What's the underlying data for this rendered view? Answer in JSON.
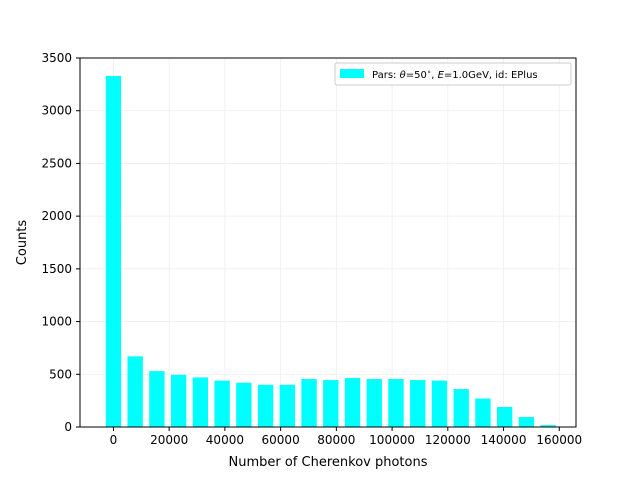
{
  "chart_data": {
    "type": "bar",
    "title": "",
    "xlabel": "Number of Cherenkov photons",
    "ylabel": "Counts",
    "xlim": [
      -12000,
      166000
    ],
    "ylim": [
      0,
      3500
    ],
    "grid": true,
    "legend_position": "top-right",
    "bar_width": 5500,
    "x": [
      0,
      7800,
      15600,
      23400,
      31200,
      39000,
      46800,
      54600,
      62400,
      70200,
      78000,
      85800,
      93600,
      101400,
      109200,
      117000,
      124800,
      132600,
      140400,
      148200,
      156000
    ],
    "series": [
      {
        "name": "Pars: θ=50°, E=1.0GeV, id: EPlus",
        "legend_parts": {
          "prefix": "Pars: ",
          "theta_sym": "θ",
          "theta_val": "=50",
          "deg": "∘",
          "sep1": ", ",
          "e_sym": "E",
          "e_val": "=1.0GeV, id: EPlus"
        },
        "color": "#00ffff",
        "values": [
          3330,
          670,
          530,
          495,
          470,
          440,
          420,
          400,
          400,
          455,
          445,
          465,
          455,
          455,
          445,
          440,
          360,
          270,
          190,
          95,
          18
        ]
      }
    ],
    "x_ticks": [
      0,
      20000,
      40000,
      60000,
      80000,
      100000,
      120000,
      140000,
      160000
    ],
    "x_tick_labels": [
      "0",
      "20000",
      "40000",
      "60000",
      "80000",
      "100000",
      "120000",
      "140000",
      "160000"
    ],
    "y_ticks": [
      0,
      500,
      1000,
      1500,
      2000,
      2500,
      3000,
      3500
    ],
    "y_tick_labels": [
      "0",
      "500",
      "1000",
      "1500",
      "2000",
      "2500",
      "3000",
      "3500"
    ]
  }
}
